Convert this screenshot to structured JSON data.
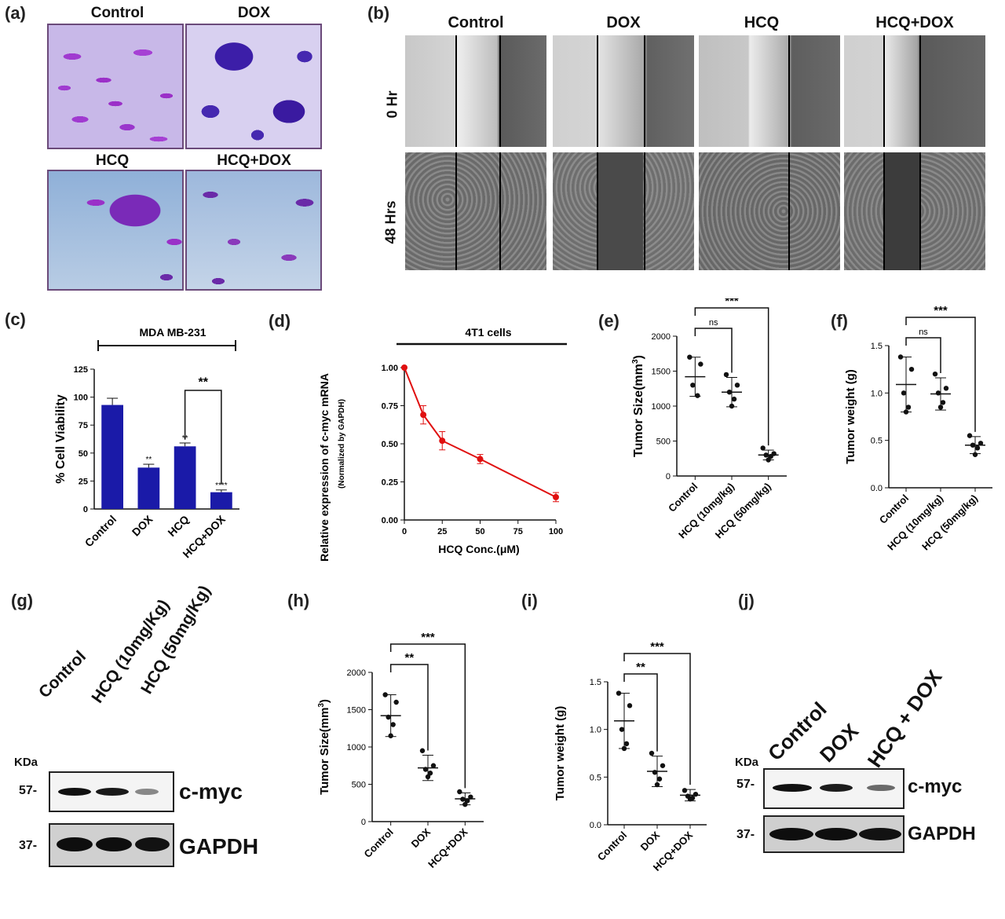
{
  "panels": {
    "a": {
      "label": "(a)",
      "titles": [
        "Control",
        "DOX",
        "HCQ",
        "HCQ+DOX"
      ]
    },
    "b": {
      "label": "(b)",
      "columns": [
        "Control",
        "DOX",
        "HCQ",
        "HCQ+DOX"
      ],
      "rows": [
        "0 Hr",
        "48 Hrs"
      ]
    },
    "c": {
      "label": "(c)"
    },
    "d": {
      "label": "(d)"
    },
    "e": {
      "label": "(e)"
    },
    "f": {
      "label": "(f)"
    },
    "g": {
      "label": "(g)",
      "lanes": [
        "Control",
        "HCQ (10mg/Kg)",
        "HCQ (50mg/Kg)"
      ],
      "kda_label": "KDa",
      "markers": [
        "57-",
        "37-"
      ],
      "proteins": [
        "c-myc",
        "GAPDH"
      ],
      "cmyc_relative_intensity": [
        1.0,
        0.9,
        0.25
      ]
    },
    "h": {
      "label": "(h)"
    },
    "i": {
      "label": "(i)"
    },
    "j": {
      "label": "(j)",
      "lanes": [
        "Control",
        "DOX",
        "HCQ + DOX"
      ],
      "kda_label": "KDa",
      "markers": [
        "57-",
        "37-"
      ],
      "proteins": [
        "c-myc",
        "GAPDH"
      ],
      "cmyc_relative_intensity": [
        1.0,
        0.75,
        0.3
      ]
    }
  },
  "chart_data": [
    {
      "panel": "c",
      "type": "bar",
      "title": "MDA MB-231",
      "ylabel": "% Cell Viability",
      "xlabel": "",
      "categories": [
        "Control",
        "DOX",
        "HCQ",
        "HCQ+DOX"
      ],
      "values": [
        93,
        37,
        56,
        15
      ],
      "errors": [
        6,
        3,
        3,
        2
      ],
      "ylim": [
        0,
        125
      ],
      "yticks": [
        "0",
        "25",
        "50",
        "75",
        "100",
        "125"
      ],
      "bar_annotations": [
        "",
        "**",
        "**",
        "****"
      ],
      "bracket": {
        "from": "HCQ",
        "to": "HCQ+DOX",
        "label": "**"
      },
      "color": "#1a1aa8"
    },
    {
      "panel": "d",
      "type": "line",
      "title": "4T1 cells",
      "ylabel": "Relative expression of  c-myc mRNA",
      "ylabel_sub": "(Normalized by GAPDH)",
      "xlabel": "HCQ Conc.(μM)",
      "x": [
        0,
        12.5,
        25,
        50,
        100
      ],
      "y": [
        1.0,
        0.69,
        0.52,
        0.4,
        0.15
      ],
      "errors": [
        0.0,
        0.06,
        0.06,
        0.03,
        0.03
      ],
      "xlim": [
        0,
        100
      ],
      "ylim": [
        0,
        1.0
      ],
      "xticks": [
        "0",
        "25",
        "50",
        "75",
        "100"
      ],
      "yticks": [
        "0.00",
        "0.25",
        "0.50",
        "0.75",
        "1.00"
      ],
      "color": "#e01010"
    },
    {
      "panel": "e",
      "type": "scatter",
      "title": "",
      "ylabel": "Tumor Size(mm",
      "ylabel_sup": "3",
      "ylabel_end": ")",
      "categories": [
        "Control",
        "HCQ (10mg/kg)",
        "HCQ (50mg/kg)"
      ],
      "points": [
        [
          1700,
          1600,
          1300,
          1150
        ],
        [
          1450,
          1300,
          1200,
          1100,
          1000
        ],
        [
          400,
          320,
          300,
          280,
          230
        ]
      ],
      "means": [
        1420,
        1200,
        300
      ],
      "sd": [
        280,
        210,
        70
      ],
      "ylim": [
        0,
        2000
      ],
      "yticks": [
        "0",
        "500",
        "1000",
        "1500",
        "2000"
      ],
      "brackets": [
        {
          "from": 0,
          "to": 1,
          "label": "ns"
        },
        {
          "from": 0,
          "to": 2,
          "label": "***"
        }
      ]
    },
    {
      "panel": "f",
      "type": "scatter",
      "title": "",
      "ylabel": "Tumor weight (g)",
      "categories": [
        "Control",
        "HCQ (10mg/kg)",
        "HCQ (50mg/kg)"
      ],
      "points": [
        [
          1.38,
          1.25,
          1.0,
          0.85,
          0.8
        ],
        [
          1.2,
          1.05,
          1.0,
          0.9,
          0.85
        ],
        [
          0.55,
          0.47,
          0.45,
          0.42,
          0.35
        ]
      ],
      "means": [
        1.09,
        0.99,
        0.45
      ],
      "sd": [
        0.29,
        0.17,
        0.09
      ],
      "ylim": [
        0,
        1.5
      ],
      "yticks": [
        "0.0",
        "0.5",
        "1.0",
        "1.5"
      ],
      "brackets": [
        {
          "from": 0,
          "to": 1,
          "label": "ns"
        },
        {
          "from": 0,
          "to": 2,
          "label": "***"
        }
      ]
    },
    {
      "panel": "h",
      "type": "scatter",
      "title": "",
      "ylabel": "Tumor Size(mm",
      "ylabel_sup": "3",
      "ylabel_end": ")",
      "categories": [
        "Control",
        "DOX",
        "HCQ+DOX"
      ],
      "points": [
        [
          1700,
          1600,
          1400,
          1300,
          1150
        ],
        [
          950,
          750,
          700,
          650,
          600
        ],
        [
          400,
          330,
          300,
          280,
          230
        ]
      ],
      "means": [
        1420,
        720,
        305
      ],
      "sd": [
        280,
        170,
        80
      ],
      "ylim": [
        0,
        2000
      ],
      "yticks": [
        "0",
        "500",
        "1000",
        "1500",
        "2000"
      ],
      "brackets": [
        {
          "from": 0,
          "to": 1,
          "label": "**"
        },
        {
          "from": 0,
          "to": 2,
          "label": "***"
        }
      ]
    },
    {
      "panel": "i",
      "type": "scatter",
      "title": "",
      "ylabel": "Tumor weight (g)",
      "categories": [
        "Control",
        "DOX",
        "HCQ+DOX"
      ],
      "points": [
        [
          1.38,
          1.25,
          1.0,
          0.85,
          0.8
        ],
        [
          0.75,
          0.62,
          0.55,
          0.48,
          0.42
        ],
        [
          0.36,
          0.32,
          0.3,
          0.28,
          0.27
        ]
      ],
      "means": [
        1.09,
        0.56,
        0.31
      ],
      "sd": [
        0.29,
        0.16,
        0.06
      ],
      "ylim": [
        0,
        1.5
      ],
      "yticks": [
        "0.0",
        "0.5",
        "1.0",
        "1.5"
      ],
      "brackets": [
        {
          "from": 0,
          "to": 1,
          "label": "**"
        },
        {
          "from": 0,
          "to": 2,
          "label": "***"
        }
      ]
    }
  ]
}
